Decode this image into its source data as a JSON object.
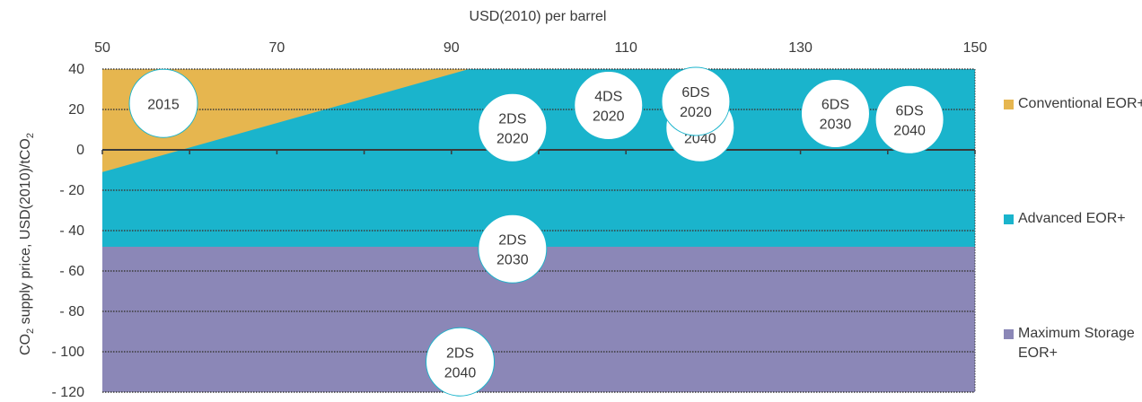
{
  "chart_data": {
    "type": "area",
    "xlabel": "USD(2010) per barrel",
    "ylabel_parts": [
      "CO",
      "2",
      " supply price, USD(2010)/tCO",
      "2"
    ],
    "x_ticks": [
      "50",
      "70",
      "90",
      "110",
      "130",
      "150"
    ],
    "y_ticks": [
      "40",
      "20",
      "0",
      "- 20",
      "- 40",
      "- 60",
      "- 80",
      "- 100",
      "- 120"
    ],
    "xlim": [
      50,
      150
    ],
    "ylim": [
      -120,
      40
    ],
    "regions": [
      {
        "name": "Maximum Storage EOR+",
        "color": "#8b87b7",
        "y_top": -48
      },
      {
        "name": "Advanced EOR+",
        "color": "#1ab4cc",
        "y_top": 40,
        "y_bottom": -48
      },
      {
        "name": "Conventional EOR+",
        "color": "#e6b64f",
        "boundary": [
          [
            50,
            -11
          ],
          [
            92,
            40
          ]
        ]
      }
    ],
    "scenarios": [
      {
        "label": [
          "2015"
        ],
        "x": 57,
        "y": 23
      },
      {
        "label": [
          "4DS",
          "2020"
        ],
        "x": 108,
        "y": 22
      },
      {
        "label": [
          "4DS",
          "2040"
        ],
        "x": 118.5,
        "y": 11
      },
      {
        "label": [
          "6DS",
          "2020"
        ],
        "x": 118,
        "y": 24
      },
      {
        "label": [
          "2DS",
          "2020"
        ],
        "x": 97,
        "y": 11
      },
      {
        "label": [
          "6DS",
          "2030"
        ],
        "x": 134,
        "y": 18
      },
      {
        "label": [
          "6DS",
          "2040"
        ],
        "x": 142.5,
        "y": 15
      },
      {
        "label": [
          "2DS",
          "2030"
        ],
        "x": 97,
        "y": -49
      },
      {
        "label": [
          "2DS",
          "2040"
        ],
        "x": 91,
        "y": -105
      }
    ],
    "legend": [
      {
        "label": "Conventional EOR+",
        "color": "#e6b64f"
      },
      {
        "label": "Advanced EOR+",
        "color": "#1ab4cc"
      },
      {
        "label": "Maximum Storage EOR+",
        "color": "#8b87b7"
      }
    ],
    "grid": "dotted horizontal",
    "legend_position": "right"
  }
}
